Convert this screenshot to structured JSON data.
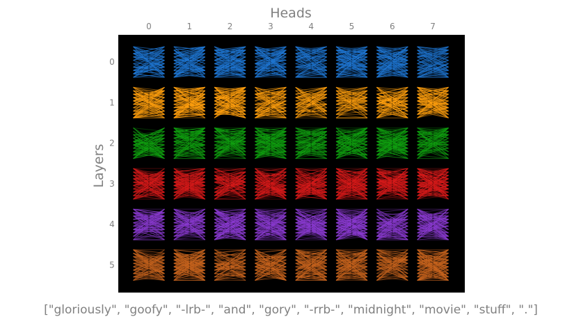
{
  "chart_data": {
    "type": "heatmap",
    "title": "Heads",
    "ylabel": "Layers",
    "xlabel": "[\"gloriously\", \"goofy\", \"-lrb-\", \"and\", \"gory\", \"-rrb-\", \"midnight\", \"movie\", \"stuff\", \".\"]",
    "heads": [
      "0",
      "1",
      "2",
      "3",
      "4",
      "5",
      "6",
      "7"
    ],
    "layers": [
      "0",
      "1",
      "2",
      "3",
      "4",
      "5"
    ],
    "tokens": [
      "gloriously",
      "goofy",
      "-lrb-",
      "and",
      "gory",
      "-rrb-",
      "midnight",
      "movie",
      "stuff",
      "."
    ],
    "layer_colors": [
      "#1f77d4",
      "#ff9f0e",
      "#10a010",
      "#d61a1a",
      "#8a3ad0",
      "#c8641e"
    ],
    "background": "#000000",
    "grid": false
  }
}
